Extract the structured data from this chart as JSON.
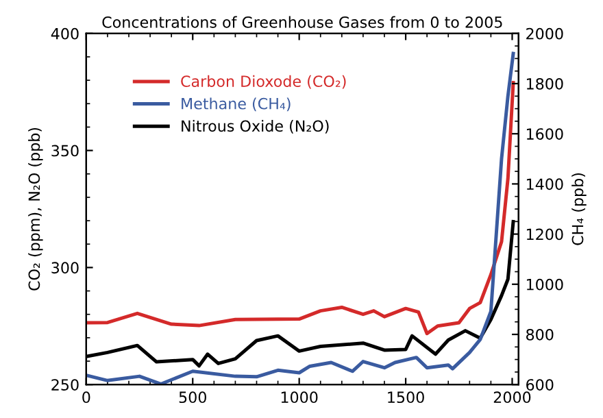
{
  "chart_data": {
    "type": "line",
    "title": "Concentrations of Greenhouse Gases from 0 to 2005",
    "ylabel": "CO₂ (ppm), N₂O (ppb)",
    "y2label": "CH₄ (ppb)",
    "xlim": [
      0,
      2030
    ],
    "xticks": [
      0,
      500,
      1000,
      1500,
      2000
    ],
    "ylim": [
      250,
      400
    ],
    "yticks": [
      250,
      300,
      350,
      400
    ],
    "y2lim": [
      600,
      2000
    ],
    "y2ticks": [
      600,
      800,
      1000,
      1200,
      1400,
      1600,
      1800,
      2000
    ],
    "legend": "top left",
    "grid": false,
    "marker": "none",
    "line_style": "solid",
    "series": [
      {
        "name": "Carbon Dioxode (CO₂)",
        "color": "#d42a2a",
        "x": [
          0,
          100,
          240,
          400,
          530,
          700,
          1000,
          1100,
          1200,
          1300,
          1350,
          1400,
          1500,
          1560,
          1600,
          1650,
          1750,
          1800,
          1850,
          1900,
          1950,
          1980,
          2005
        ],
        "values": [
          276.4,
          276.5,
          280.4,
          275.8,
          275.2,
          277.8,
          278,
          281.5,
          283,
          280,
          281.5,
          279,
          282.5,
          281,
          271.8,
          275,
          276.4,
          282.5,
          285,
          297,
          311,
          338,
          379
        ]
      },
      {
        "name": "Methane (CH₄)",
        "color": "#3a5ba0",
        "axis": "y2",
        "x": [
          0,
          100,
          250,
          350,
          500,
          700,
          800,
          900,
          1000,
          1050,
          1150,
          1250,
          1300,
          1400,
          1450,
          1550,
          1600,
          1700,
          1720,
          1800,
          1850,
          1900,
          1950,
          1980,
          2005
        ],
        "values": [
          637,
          616,
          633,
          602,
          653,
          633,
          631,
          657,
          647,
          673,
          688,
          653,
          692,
          667,
          688,
          708,
          667,
          678,
          663,
          728,
          780,
          892,
          1500,
          1750,
          1920
        ]
      },
      {
        "name": "Nitrous Oxide (N₂O)",
        "color": "#000000",
        "x": [
          0,
          100,
          240,
          330,
          500,
          530,
          570,
          620,
          700,
          800,
          900,
          1000,
          1100,
          1300,
          1400,
          1500,
          1530,
          1640,
          1700,
          1780,
          1850,
          1900,
          1950,
          1980,
          2005
        ],
        "values": [
          262,
          263.7,
          266.7,
          259.7,
          260.7,
          258,
          263,
          259,
          261,
          268.8,
          270.8,
          264.3,
          266.3,
          267.7,
          264.7,
          265,
          270.8,
          263,
          269,
          273,
          269.8,
          277.8,
          288,
          295,
          319.6
        ]
      }
    ]
  }
}
